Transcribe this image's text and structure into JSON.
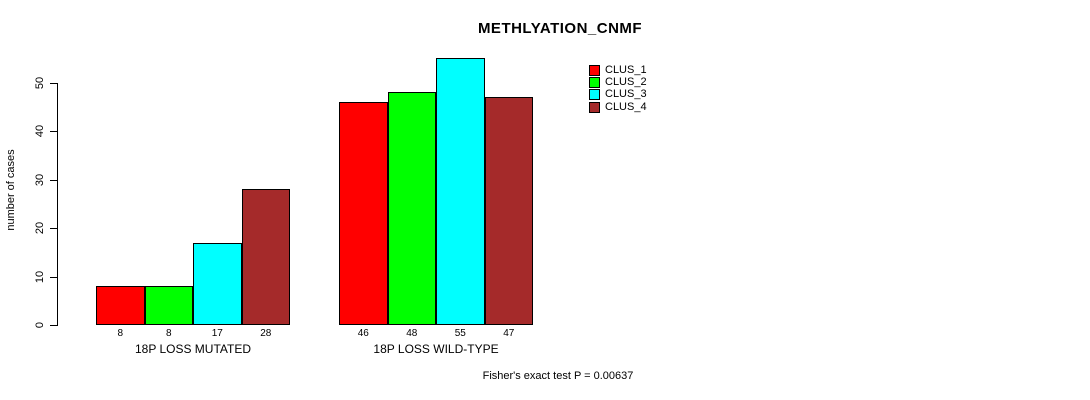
{
  "title": "METHLYATION_CNMF",
  "chart_data": {
    "type": "bar",
    "title": "METHLYATION_CNMF",
    "xlabel": "",
    "ylabel": "number of cases",
    "yticks": [
      0,
      10,
      20,
      30,
      40,
      50
    ],
    "ylim": [
      0,
      55
    ],
    "grid": false,
    "legend_position": "top-right",
    "categories": [
      "18P LOSS MUTATED",
      "18P LOSS WILD-TYPE"
    ],
    "series": [
      {
        "name": "CLUS_1",
        "color": "#FF0000",
        "values": [
          8,
          46
        ]
      },
      {
        "name": "CLUS_2",
        "color": "#00FF00",
        "values": [
          8,
          48
        ]
      },
      {
        "name": "CLUS_3",
        "color": "#00FFFF",
        "values": [
          17,
          55
        ]
      },
      {
        "name": "CLUS_4",
        "color": "#A52A2A",
        "values": [
          28,
          47
        ]
      }
    ],
    "bar_value_labels": [
      [
        8,
        8,
        17,
        28
      ],
      [
        46,
        48,
        55,
        47
      ]
    ],
    "annotation": "Fisher's exact test P = 0.00637"
  },
  "colors": {
    "background": "#FFFFFF",
    "axis": "#000000",
    "text": "#000000"
  }
}
